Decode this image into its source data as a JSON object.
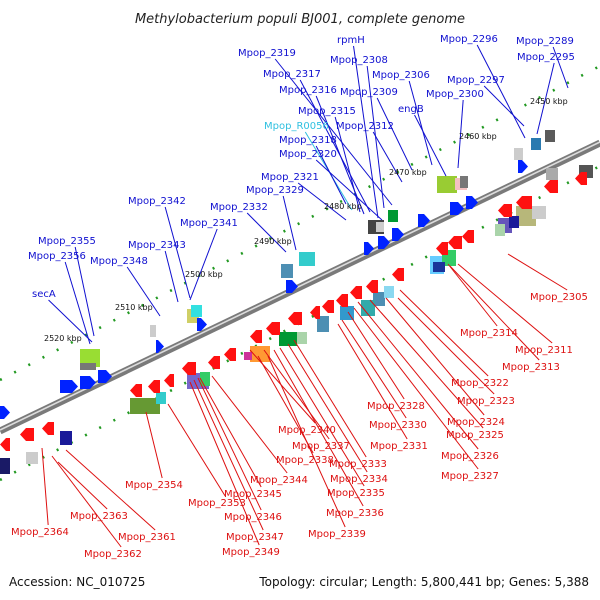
{
  "title": "Methylobacterium populi BJ001, complete genome",
  "footer": {
    "accession": "Accession: NC_010725",
    "summary": "Topology: circular; Length: 5,800,441 bp; Genes: 5,388"
  },
  "colors": {
    "top_label": "#1010d0",
    "top_label_alt": "#30c0e0",
    "bottom_label": "#dd1010",
    "backbone": "#8a8a8a",
    "tick": "#229922"
  },
  "scale_labels": [
    "2450 kbp",
    "2460 kbp",
    "2470 kbp",
    "2480 kbp",
    "2490 kbp",
    "2500 kbp",
    "2510 kbp",
    "2520 kbp"
  ],
  "top_genes": [
    "Mpop_2319",
    "rpmH",
    "Mpop_2296",
    "Mpop_2289",
    "Mpop_2308",
    "Mpop_2317",
    "Mpop_2306",
    "Mpop_2295",
    "Mpop_2316",
    "Mpop_2309",
    "Mpop_2297",
    "Mpop_2300",
    "engB",
    "Mpop_2315",
    "Mpop_R0056",
    "Mpop_2312",
    "Mpop_2318",
    "Mpop_2320",
    "Mpop_2321",
    "Mpop_2342",
    "Mpop_2329",
    "Mpop_2332",
    "Mpop_2341",
    "Mpop_2355",
    "Mpop_2343",
    "Mpop_2356",
    "Mpop_2348",
    "secA"
  ],
  "bottom_genes": [
    "Mpop_2305",
    "Mpop_2314",
    "Mpop_2311",
    "Mpop_2313",
    "Mpop_2322",
    "Mpop_2323",
    "Mpop_2328",
    "Mpop_2324",
    "Mpop_2330",
    "Mpop_2325",
    "Mpop_2340",
    "Mpop_2331",
    "Mpop_2337",
    "Mpop_2326",
    "Mpop_2338",
    "Mpop_2333",
    "Mpop_2327",
    "Mpop_2334",
    "Mpop_2344",
    "Mpop_2354",
    "Mpop_2335",
    "Mpop_2345",
    "Mpop_2353",
    "Mpop_2336",
    "Mpop_2346",
    "Mpop_2363",
    "Mpop_2339",
    "Mpop_2364",
    "Mpop_2347",
    "Mpop_2361",
    "Mpop_2349",
    "Mpop_2362"
  ]
}
